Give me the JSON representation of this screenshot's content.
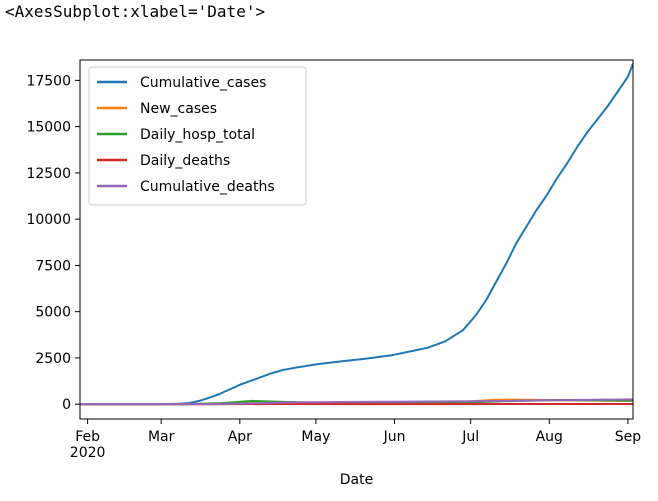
{
  "cell_output": {
    "repr_text": "<AxesSubplot:xlabel='Date'>"
  },
  "chart_data": {
    "type": "line",
    "title": "",
    "xlabel": "Date",
    "ylabel": "",
    "xlim": [
      "2020-01-29",
      "2020-09-03"
    ],
    "ylim": [
      -800,
      18600
    ],
    "yticks": [
      0,
      2500,
      5000,
      7500,
      10000,
      12500,
      15000,
      17500
    ],
    "ytick_labels": [
      "0",
      "2500",
      "5000",
      "7500",
      "10000",
      "12500",
      "15000",
      "17500"
    ],
    "xticks": [
      {
        "date": "2020-02-01",
        "label": "Feb",
        "sublabel": "2020"
      },
      {
        "date": "2020-03-01",
        "label": "Mar",
        "sublabel": ""
      },
      {
        "date": "2020-04-01",
        "label": "Apr",
        "sublabel": ""
      },
      {
        "date": "2020-05-01",
        "label": "May",
        "sublabel": ""
      },
      {
        "date": "2020-06-01",
        "label": "Jun",
        "sublabel": ""
      },
      {
        "date": "2020-07-01",
        "label": "Jul",
        "sublabel": ""
      },
      {
        "date": "2020-08-01",
        "label": "Aug",
        "sublabel": ""
      },
      {
        "date": "2020-09-01",
        "label": "Sep",
        "sublabel": ""
      }
    ],
    "grid": false,
    "legend_position": "upper-left",
    "series": [
      {
        "name": "Cumulative_cases",
        "color": "#1f77b4",
        "points": [
          [
            "2020-01-29",
            0
          ],
          [
            "2020-02-15",
            0
          ],
          [
            "2020-03-01",
            5
          ],
          [
            "2020-03-08",
            20
          ],
          [
            "2020-03-12",
            60
          ],
          [
            "2020-03-16",
            180
          ],
          [
            "2020-03-20",
            350
          ],
          [
            "2020-03-24",
            550
          ],
          [
            "2020-03-28",
            800
          ],
          [
            "2020-04-01",
            1050
          ],
          [
            "2020-04-05",
            1250
          ],
          [
            "2020-04-09",
            1450
          ],
          [
            "2020-04-13",
            1650
          ],
          [
            "2020-04-18",
            1850
          ],
          [
            "2020-04-24",
            2000
          ],
          [
            "2020-05-01",
            2150
          ],
          [
            "2020-05-10",
            2300
          ],
          [
            "2020-05-20",
            2450
          ],
          [
            "2020-05-31",
            2650
          ],
          [
            "2020-06-07",
            2850
          ],
          [
            "2020-06-14",
            3050
          ],
          [
            "2020-06-21",
            3400
          ],
          [
            "2020-06-28",
            4000
          ],
          [
            "2020-07-03",
            4800
          ],
          [
            "2020-07-07",
            5600
          ],
          [
            "2020-07-11",
            6600
          ],
          [
            "2020-07-15",
            7600
          ],
          [
            "2020-07-19",
            8700
          ],
          [
            "2020-07-23",
            9600
          ],
          [
            "2020-07-27",
            10500
          ],
          [
            "2020-07-31",
            11300
          ],
          [
            "2020-08-04",
            12200
          ],
          [
            "2020-08-08",
            13000
          ],
          [
            "2020-08-12",
            13900
          ],
          [
            "2020-08-16",
            14700
          ],
          [
            "2020-08-20",
            15400
          ],
          [
            "2020-08-24",
            16100
          ],
          [
            "2020-08-28",
            16900
          ],
          [
            "2020-09-01",
            17700
          ],
          [
            "2020-09-03",
            18400
          ]
        ]
      },
      {
        "name": "New_cases",
        "color": "#ff7f0e",
        "points": [
          [
            "2020-01-29",
            0
          ],
          [
            "2020-03-10",
            5
          ],
          [
            "2020-04-01",
            60
          ],
          [
            "2020-05-01",
            40
          ],
          [
            "2020-06-01",
            50
          ],
          [
            "2020-06-20",
            80
          ],
          [
            "2020-07-01",
            150
          ],
          [
            "2020-07-10",
            230
          ],
          [
            "2020-07-18",
            250
          ],
          [
            "2020-07-28",
            230
          ],
          [
            "2020-08-05",
            220
          ],
          [
            "2020-08-15",
            200
          ],
          [
            "2020-08-25",
            190
          ],
          [
            "2020-09-03",
            180
          ]
        ]
      },
      {
        "name": "Daily_hosp_total",
        "color": "#2ca02c",
        "points": [
          [
            "2020-01-29",
            0
          ],
          [
            "2020-03-10",
            2
          ],
          [
            "2020-03-25",
            60
          ],
          [
            "2020-04-06",
            180
          ],
          [
            "2020-04-20",
            120
          ],
          [
            "2020-05-05",
            80
          ],
          [
            "2020-05-25",
            50
          ],
          [
            "2020-06-15",
            60
          ],
          [
            "2020-07-01",
            110
          ],
          [
            "2020-07-20",
            180
          ],
          [
            "2020-08-05",
            220
          ],
          [
            "2020-08-20",
            200
          ],
          [
            "2020-09-03",
            190
          ]
        ]
      },
      {
        "name": "Daily_deaths",
        "color": "#d62728",
        "points": [
          [
            "2020-01-29",
            0
          ],
          [
            "2020-03-20",
            1
          ],
          [
            "2020-04-15",
            10
          ],
          [
            "2020-05-15",
            6
          ],
          [
            "2020-06-15",
            4
          ],
          [
            "2020-07-15",
            8
          ],
          [
            "2020-08-15",
            12
          ],
          [
            "2020-09-03",
            10
          ]
        ]
      },
      {
        "name": "Cumulative_deaths",
        "color": "#9467bd",
        "points": [
          [
            "2020-01-29",
            0
          ],
          [
            "2020-03-20",
            5
          ],
          [
            "2020-04-01",
            30
          ],
          [
            "2020-04-20",
            90
          ],
          [
            "2020-05-10",
            120
          ],
          [
            "2020-06-01",
            135
          ],
          [
            "2020-07-01",
            155
          ],
          [
            "2020-08-01",
            210
          ],
          [
            "2020-09-03",
            260
          ]
        ]
      }
    ]
  }
}
